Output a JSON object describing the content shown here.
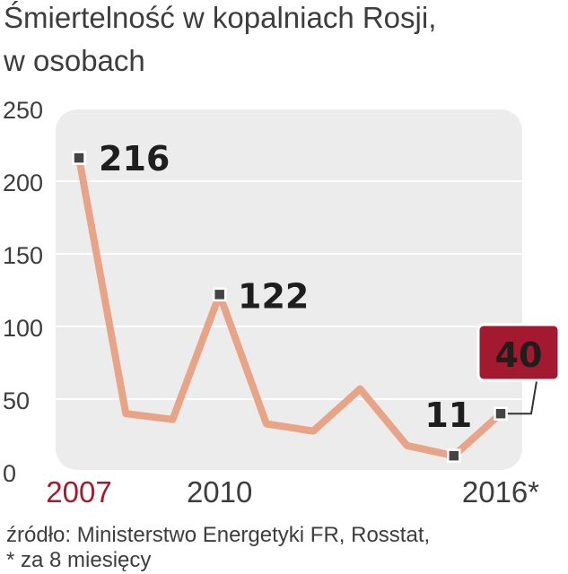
{
  "title_lines": [
    "Śmiertelność w kopalniach Rosji,",
    "w osobach"
  ],
  "colors": {
    "plot_bg": "#ececec",
    "gridline": "#ffffff",
    "line": "#e8a487",
    "marker_fill": "#444444",
    "marker_stroke": "#ffffff",
    "accent": "#a3192f",
    "accent_text": "#ffffff",
    "text": "#3d3d3d",
    "value_text": "#1e1e1e"
  },
  "chart_data": {
    "type": "line",
    "title": "Śmiertelność w kopalniach Rosji, w osobach",
    "x": [
      2007,
      2008,
      2009,
      2010,
      2011,
      2012,
      2013,
      2014,
      2015,
      2016
    ],
    "values": [
      216,
      40,
      36,
      122,
      33,
      28,
      57,
      18,
      11,
      40
    ],
    "ylim": [
      0,
      250
    ],
    "yticks": [
      0,
      50,
      100,
      150,
      200,
      250
    ],
    "ytick_labels": [
      "0",
      "50",
      "100",
      "150",
      "200",
      "250"
    ],
    "grid": true,
    "xtick_labels": [
      {
        "index": 0,
        "text": "2007",
        "highlight": true
      },
      {
        "index": 3,
        "text": "2010",
        "highlight": false
      },
      {
        "index": 9,
        "text": "2016*",
        "highlight": false
      }
    ],
    "markers": [
      0,
      3,
      8,
      9
    ],
    "value_labels": [
      {
        "index": 0,
        "text": "216"
      },
      {
        "index": 3,
        "text": "122"
      },
      {
        "index": 8,
        "text": "11"
      }
    ],
    "callout": {
      "index": 9,
      "text": "40"
    }
  },
  "source": "źródło: Ministerstwo Energetyki FR, Rosstat,",
  "footnote": "* za 8 miesięcy"
}
